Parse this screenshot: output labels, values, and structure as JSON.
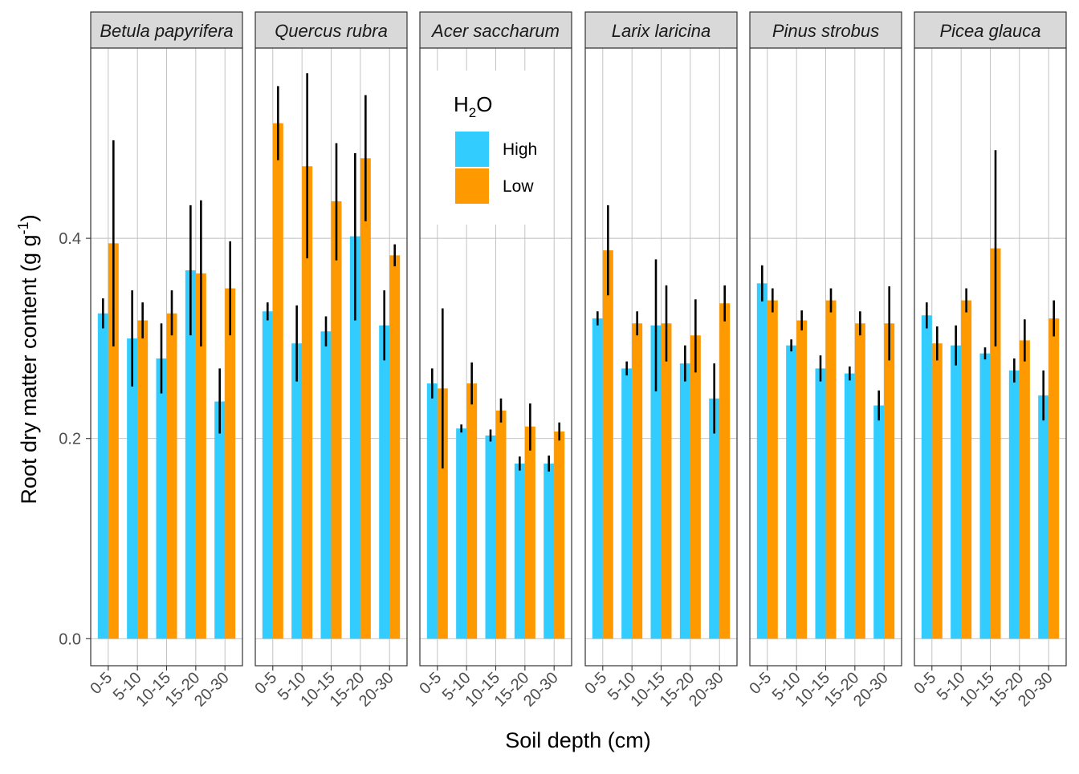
{
  "chart_data": {
    "type": "bar",
    "ylabel": "Root dry matter content (g g",
    "ylabel_sup": "-1",
    "ylabel_end": ")",
    "xlabel": "Soil depth (cm)",
    "ylim": [
      -0.027,
      0.59
    ],
    "yticks": [
      {
        "value": 0.0,
        "label": "0.0"
      },
      {
        "value": 0.2,
        "label": "0.2"
      },
      {
        "value": 0.4,
        "label": "0.4"
      }
    ],
    "categories": [
      "0-5",
      "5-10",
      "10-15",
      "15-20",
      "20-30"
    ],
    "legend": {
      "title_main": "H",
      "title_sub": "2",
      "title_end": "O",
      "entries": [
        {
          "name": "High",
          "color": "#33CCFF"
        },
        {
          "name": "Low",
          "color": "#FF9900"
        }
      ]
    },
    "colors": {
      "High": "#33CCFF",
      "Low": "#FF9900",
      "strip": "#D9D9D9",
      "grid": "#BDBDBD"
    },
    "panels": [
      {
        "title": "Betula papyrifera",
        "series": [
          {
            "name": "High",
            "values": [
              0.325,
              0.3,
              0.28,
              0.368,
              0.237
            ],
            "err_low": [
              0.31,
              0.252,
              0.245,
              0.303,
              0.205
            ],
            "err_high": [
              0.34,
              0.348,
              0.315,
              0.433,
              0.27
            ]
          },
          {
            "name": "Low",
            "values": [
              0.395,
              0.318,
              0.325,
              0.365,
              0.35
            ],
            "err_low": [
              0.292,
              0.3,
              0.303,
              0.292,
              0.303
            ],
            "err_high": [
              0.498,
              0.336,
              0.348,
              0.438,
              0.397
            ]
          }
        ]
      },
      {
        "title": "Quercus rubra",
        "series": [
          {
            "name": "High",
            "values": [
              0.327,
              0.295,
              0.307,
              0.402,
              0.313
            ],
            "err_low": [
              0.318,
              0.257,
              0.292,
              0.318,
              0.278
            ],
            "err_high": [
              0.336,
              0.333,
              0.322,
              0.485,
              0.348
            ]
          },
          {
            "name": "Low",
            "values": [
              0.515,
              0.472,
              0.437,
              0.48,
              0.383
            ],
            "err_low": [
              0.478,
              0.38,
              0.378,
              0.417,
              0.372
            ],
            "err_high": [
              0.552,
              0.565,
              0.495,
              0.543,
              0.394
            ]
          }
        ]
      },
      {
        "title": "Acer saccharum",
        "series": [
          {
            "name": "High",
            "values": [
              0.255,
              0.21,
              0.203,
              0.175,
              0.175
            ],
            "err_low": [
              0.24,
              0.206,
              0.197,
              0.168,
              0.167
            ],
            "err_high": [
              0.27,
              0.214,
              0.209,
              0.182,
              0.183
            ]
          },
          {
            "name": "Low",
            "values": [
              0.25,
              0.255,
              0.228,
              0.212,
              0.207
            ],
            "err_low": [
              0.17,
              0.234,
              0.216,
              0.188,
              0.198
            ],
            "err_high": [
              0.33,
              0.276,
              0.24,
              0.235,
              0.216
            ]
          }
        ]
      },
      {
        "title": "Larix laricina",
        "series": [
          {
            "name": "High",
            "values": [
              0.32,
              0.27,
              0.313,
              0.275,
              0.24
            ],
            "err_low": [
              0.313,
              0.263,
              0.247,
              0.257,
              0.205
            ],
            "err_high": [
              0.327,
              0.277,
              0.379,
              0.293,
              0.275
            ]
          },
          {
            "name": "Low",
            "values": [
              0.388,
              0.315,
              0.315,
              0.303,
              0.335
            ],
            "err_low": [
              0.343,
              0.303,
              0.277,
              0.266,
              0.317
            ],
            "err_high": [
              0.433,
              0.327,
              0.353,
              0.339,
              0.353
            ]
          }
        ]
      },
      {
        "title": "Pinus strobus",
        "series": [
          {
            "name": "High",
            "values": [
              0.355,
              0.293,
              0.27,
              0.265,
              0.233
            ],
            "err_low": [
              0.337,
              0.287,
              0.257,
              0.258,
              0.218
            ],
            "err_high": [
              0.373,
              0.299,
              0.283,
              0.272,
              0.248
            ]
          },
          {
            "name": "Low",
            "values": [
              0.338,
              0.318,
              0.338,
              0.315,
              0.315
            ],
            "err_low": [
              0.326,
              0.308,
              0.326,
              0.303,
              0.278
            ],
            "err_high": [
              0.35,
              0.328,
              0.35,
              0.327,
              0.352
            ]
          }
        ]
      },
      {
        "title": "Picea glauca",
        "series": [
          {
            "name": "High",
            "values": [
              0.323,
              0.293,
              0.285,
              0.268,
              0.243
            ],
            "err_low": [
              0.31,
              0.273,
              0.279,
              0.256,
              0.218
            ],
            "err_high": [
              0.336,
              0.313,
              0.291,
              0.28,
              0.268
            ]
          },
          {
            "name": "Low",
            "values": [
              0.295,
              0.338,
              0.39,
              0.298,
              0.32
            ],
            "err_low": [
              0.278,
              0.326,
              0.292,
              0.277,
              0.302
            ],
            "err_high": [
              0.312,
              0.35,
              0.488,
              0.319,
              0.338
            ]
          }
        ]
      }
    ]
  }
}
